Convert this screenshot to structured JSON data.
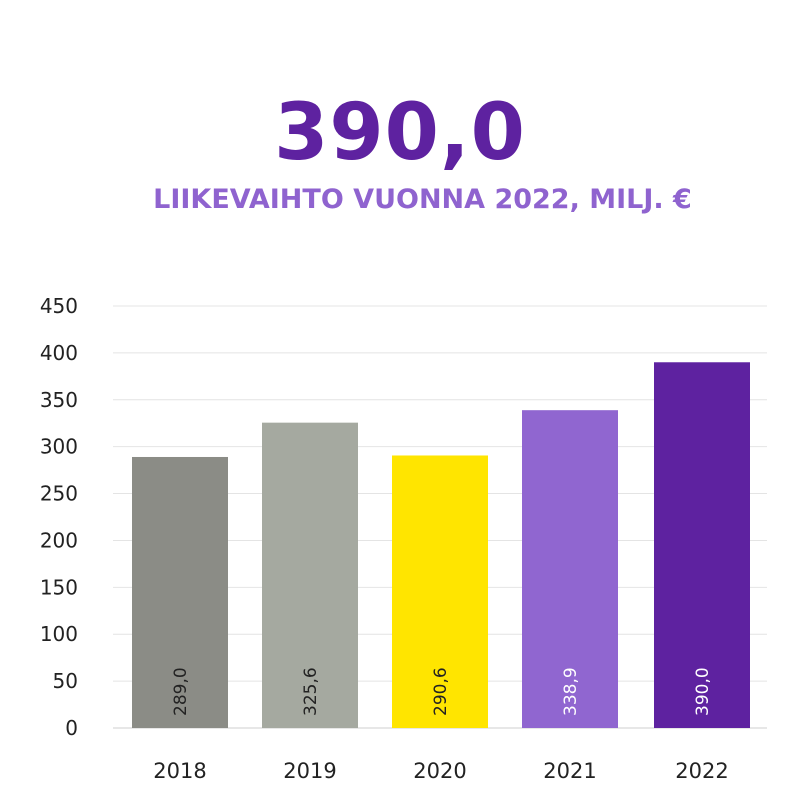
{
  "headline": {
    "value": "390,0",
    "label": "LIIKEVAIHTO VUONNA 2022, MILJ. €"
  },
  "colors": {
    "headline": "#5e22a0",
    "subline": "#8f63cf",
    "grid": "#e4e4e4"
  },
  "chart_data": {
    "type": "bar",
    "categories": [
      "2018",
      "2019",
      "2020",
      "2021",
      "2022"
    ],
    "values": [
      289.0,
      325.6,
      290.6,
      338.9,
      390.0
    ],
    "data_labels": [
      "289,0",
      "325,6",
      "290,6",
      "338,9",
      "390,0"
    ],
    "bar_colors": [
      "#8b8c86",
      "#a5a9a0",
      "#ffe500",
      "#9066d0",
      "#5e22a0"
    ],
    "label_colors": [
      "#222222",
      "#222222",
      "#222222",
      "#ffffff",
      "#ffffff"
    ],
    "y_ticks": [
      0,
      50,
      100,
      150,
      200,
      250,
      300,
      350,
      400,
      450
    ],
    "ylim": [
      0,
      450
    ],
    "grid": true,
    "legend": "none",
    "title": "",
    "xlabel": "",
    "ylabel": ""
  }
}
